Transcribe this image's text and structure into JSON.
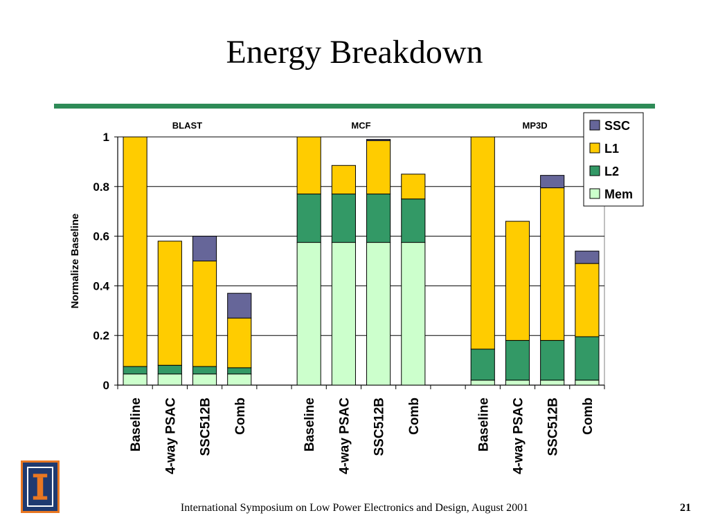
{
  "slide": {
    "title": "Energy Breakdown",
    "footer": "International Symposium on Low Power Electronics and Design,  August 2001",
    "page_number": "21",
    "rule_color": "#2e8b57",
    "logo_text": "I"
  },
  "chart_data": {
    "type": "bar",
    "stacked": true,
    "title": "",
    "xlabel": "",
    "ylabel": "Normalize Baseline",
    "ylim": [
      0,
      1
    ],
    "yticks": [
      "0",
      "0.2",
      "0.4",
      "0.6",
      "0.8",
      "1"
    ],
    "ytick_values": [
      0,
      0.2,
      0.4,
      0.6,
      0.8,
      1
    ],
    "grid": true,
    "legend_position": "top-right",
    "groups": [
      {
        "name": "BLAST",
        "categories": [
          "Baseline",
          "4-way PSAC",
          "SSC512B",
          "Comb"
        ],
        "series": [
          {
            "name": "Mem",
            "values": [
              0.045,
              0.045,
              0.045,
              0.045
            ]
          },
          {
            "name": "L2",
            "values": [
              0.03,
              0.035,
              0.03,
              0.025
            ]
          },
          {
            "name": "L1",
            "values": [
              0.925,
              0.5,
              0.425,
              0.2
            ]
          },
          {
            "name": "SSC",
            "values": [
              0,
              0,
              0.1,
              0.1
            ]
          }
        ]
      },
      {
        "name": "MCF",
        "categories": [
          "Baseline",
          "4-way PSAC",
          "SSC512B",
          "Comb"
        ],
        "series": [
          {
            "name": "Mem",
            "values": [
              0.575,
              0.575,
              0.575,
              0.575
            ]
          },
          {
            "name": "L2",
            "values": [
              0.195,
              0.195,
              0.195,
              0.175
            ]
          },
          {
            "name": "L1",
            "values": [
              0.23,
              0.115,
              0.215,
              0.1
            ]
          },
          {
            "name": "SSC",
            "values": [
              0,
              0,
              0.005,
              0
            ]
          }
        ]
      },
      {
        "name": "MP3D",
        "categories": [
          "Baseline",
          "4-way PSAC",
          "SSC512B",
          "Comb"
        ],
        "series": [
          {
            "name": "Mem",
            "values": [
              0.02,
              0.02,
              0.02,
              0.02
            ]
          },
          {
            "name": "L2",
            "values": [
              0.125,
              0.16,
              0.16,
              0.175
            ]
          },
          {
            "name": "L1",
            "values": [
              0.855,
              0.48,
              0.615,
              0.295
            ]
          },
          {
            "name": "SSC",
            "values": [
              0,
              0,
              0.05,
              0.05
            ]
          }
        ]
      }
    ],
    "legend": [
      "SSC",
      "L1",
      "L2",
      "Mem"
    ],
    "colors": {
      "Mem": "#ccffcc",
      "L2": "#339966",
      "L1": "#ffcc00",
      "SSC": "#666699"
    }
  }
}
